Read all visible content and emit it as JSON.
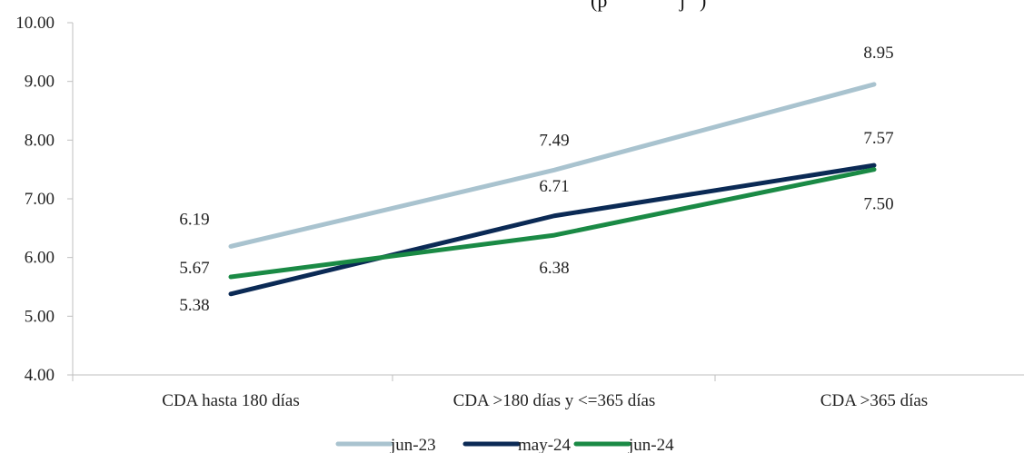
{
  "chart_data": {
    "type": "line",
    "title": "(p",
    "title_suffix": "j",
    "categories": [
      "CDA hasta 180 días",
      "CDA >180 días y <=365 días",
      "CDA >365 días"
    ],
    "ylim": [
      4.0,
      10.0
    ],
    "yticks": [
      "4.00",
      "5.00",
      "6.00",
      "7.00",
      "8.00",
      "9.00",
      "10.00"
    ],
    "grid": false,
    "legend_position": "bottom",
    "series": [
      {
        "name": "jun-23",
        "color": "#a9c3cf",
        "values": [
          6.19,
          7.49,
          8.95
        ],
        "labels": [
          "6.19",
          "7.49",
          "8.95"
        ]
      },
      {
        "name": "may-24",
        "color": "#0b2a55",
        "values": [
          5.38,
          6.71,
          7.57
        ],
        "labels": [
          "5.38",
          "6.71",
          "7.57"
        ]
      },
      {
        "name": "jun-24",
        "color": "#1a8a45",
        "values": [
          5.67,
          6.38,
          7.5
        ],
        "labels": [
          "5.67",
          "6.38",
          "7.50"
        ]
      }
    ]
  }
}
